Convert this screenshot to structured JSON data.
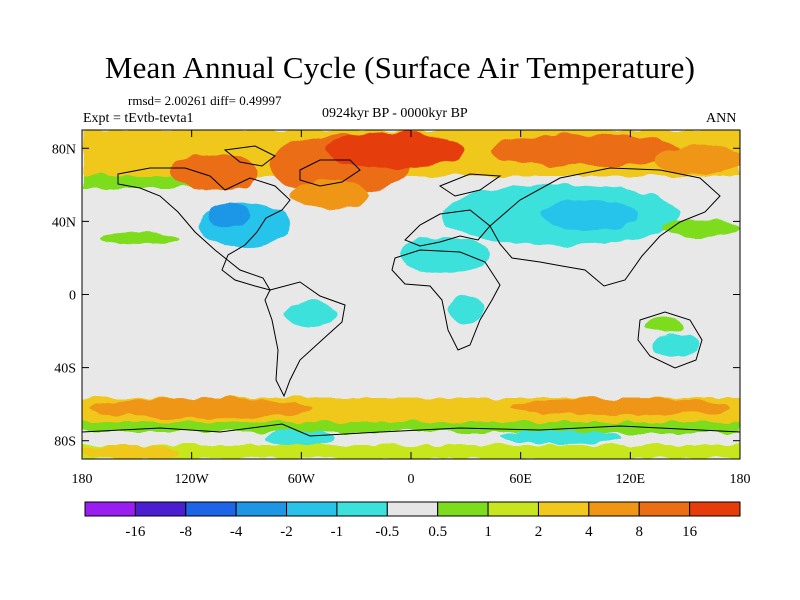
{
  "header": {
    "title": "Mean Annual Cycle (Surface Air Temperature)",
    "stats": "rmsd= 2.00261 diff= 0.49997",
    "expt": "Expt = tEvtb-tevta1",
    "period": "0924kyr BP - 0000kyr BP",
    "season": "ANN"
  },
  "axes": {
    "lat_ticks": [
      "80N",
      "40N",
      "0",
      "40S",
      "80S"
    ],
    "lat_values": [
      80,
      40,
      0,
      -40,
      -80
    ],
    "lon_ticks": [
      "180",
      "120W",
      "60W",
      "0",
      "60E",
      "120E",
      "180"
    ],
    "lon_values": [
      -180,
      -120,
      -60,
      0,
      60,
      120,
      180
    ],
    "lat_range": [
      -90,
      90
    ],
    "lon_range": [
      -180,
      180
    ]
  },
  "colorbar": {
    "labels": [
      "-16",
      "-8",
      "-4",
      "-2",
      "-1",
      "-0.5",
      "0.5",
      "1",
      "2",
      "4",
      "8",
      "16"
    ],
    "colors": [
      "#9a1ef0",
      "#4b1ed2",
      "#1e64e6",
      "#1e96e6",
      "#28c3eb",
      "#3ce1dc",
      "#e6e6e6",
      "#7ddc1e",
      "#c8e61e",
      "#f0c81e",
      "#f09614",
      "#eb6e14",
      "#e63c0a"
    ]
  },
  "colors": {
    "neutral": "#e8e8e8",
    "frame": "#000000"
  }
}
